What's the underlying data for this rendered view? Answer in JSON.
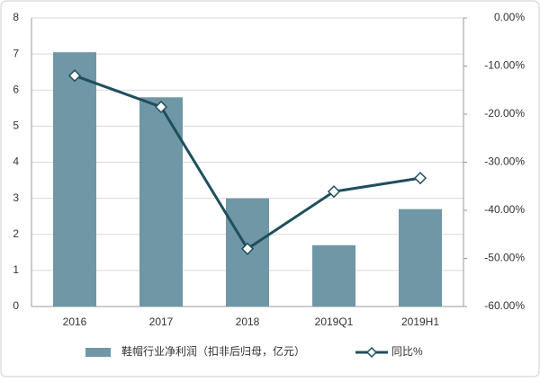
{
  "chart_data": {
    "type": "bar",
    "categories": [
      "2016",
      "2017",
      "2018",
      "2019Q1",
      "2019H1"
    ],
    "series": [
      {
        "name": "鞋帽行业净利润（扣非后归母，亿元）",
        "type": "bar",
        "color": "#6f97a6",
        "values": [
          7.05,
          5.8,
          3.0,
          1.7,
          2.7
        ]
      },
      {
        "name": "同比%",
        "type": "line",
        "axis": "y2",
        "color": "#1f4f5e",
        "values": [
          -12.0,
          -18.5,
          -48.0,
          -36.1,
          -33.3
        ]
      }
    ],
    "ylim": [
      0,
      8
    ],
    "yticks": [
      0,
      1,
      2,
      3,
      4,
      5,
      6,
      7,
      8
    ],
    "y2lim": [
      -60,
      0
    ],
    "y2ticks": [
      {
        "value": 0,
        "label": "0.00%"
      },
      {
        "value": -10,
        "label": "-10.00%"
      },
      {
        "value": -20,
        "label": "-20.00%"
      },
      {
        "value": -30,
        "label": "-30.00%"
      },
      {
        "value": -40,
        "label": "-40.00%"
      },
      {
        "value": -50,
        "label": "-50.00%"
      },
      {
        "value": -60,
        "label": "-60.00%"
      }
    ],
    "grid": true,
    "legend": "bottom"
  }
}
